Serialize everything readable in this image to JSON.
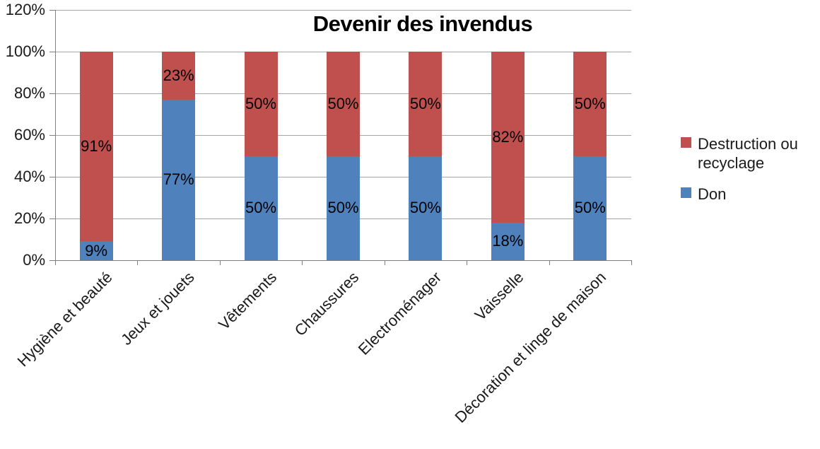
{
  "chart_data": {
    "type": "bar",
    "subtype": "stacked-100",
    "title": "Devenir des invendus",
    "categories": [
      "Hygiène et beauté",
      "Jeux et jouets",
      "Vêtements",
      "Chaussures",
      "Electroménager",
      "Vaisselle",
      "Décoration et linge de maison"
    ],
    "series": [
      {
        "name": "Don",
        "color": "#4F81BD",
        "values": [
          9,
          77,
          50,
          50,
          50,
          18,
          50
        ]
      },
      {
        "name": "Destruction ou recyclage",
        "color": "#C0504D",
        "values": [
          91,
          23,
          50,
          50,
          50,
          82,
          50
        ]
      }
    ],
    "data_labels": {
      "Don": [
        "9%",
        "77%",
        "50%",
        "50%",
        "50%",
        "18%",
        "50%"
      ],
      "Destruction ou recyclage": [
        "91%",
        "23%",
        "50%",
        "50%",
        "50%",
        "82%",
        "50%"
      ]
    },
    "xlabel": "",
    "ylabel": "",
    "ylim": [
      0,
      120
    ],
    "y_ticks": [
      "0%",
      "20%",
      "40%",
      "60%",
      "80%",
      "100%",
      "120%"
    ],
    "grid": true,
    "legend": {
      "position": "right",
      "entries": [
        "Destruction ou recyclage",
        "Don"
      ]
    }
  }
}
